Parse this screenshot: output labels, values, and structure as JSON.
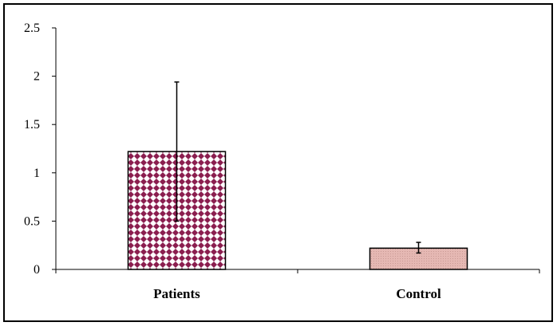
{
  "chart_data": {
    "type": "bar",
    "title": "",
    "xlabel": "",
    "ylabel": "",
    "categories": [
      "Patients",
      "Control"
    ],
    "values": [
      1.22,
      0.22
    ],
    "error_bars": [
      {
        "low": 0.5,
        "high": 1.94
      },
      {
        "low": 0.17,
        "high": 0.28
      }
    ],
    "ylim": [
      0,
      2.5
    ],
    "yticks": [
      0,
      0.5,
      1,
      1.5,
      2,
      2.5
    ],
    "ytick_labels": [
      "0",
      "0.5",
      "1",
      "1.5",
      "2",
      "2.5"
    ],
    "grid": false,
    "legend": "none",
    "bar_styles": [
      {
        "fill": "#ffffff",
        "pattern_color": "#8b1e4f",
        "pattern": "diamond-checker"
      },
      {
        "fill": "#e5b8b3",
        "pattern_color": "#c99a95",
        "pattern": "fine-dots"
      }
    ]
  }
}
